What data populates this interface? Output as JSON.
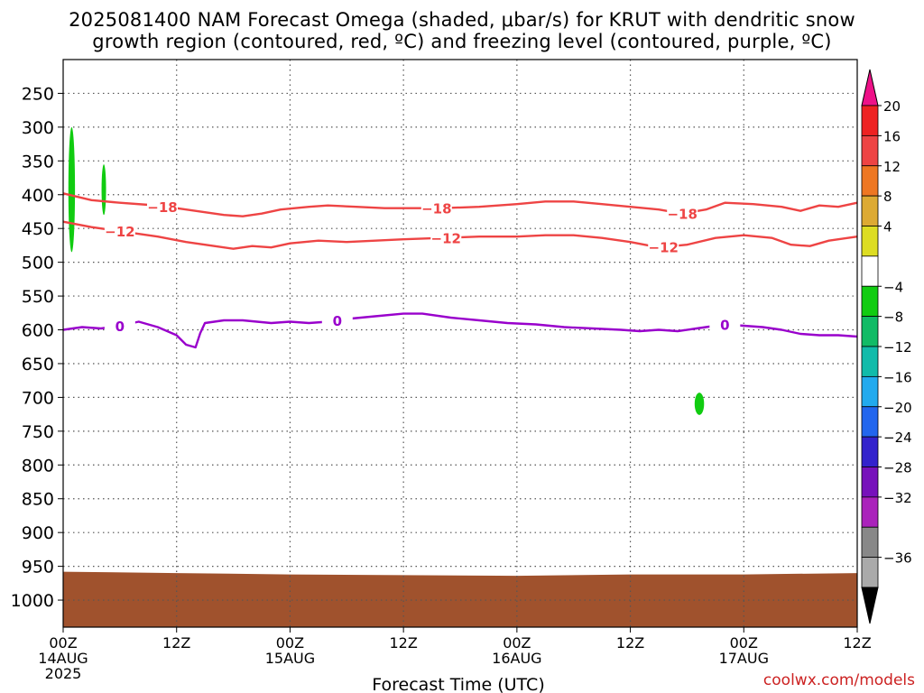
{
  "title_line1": "2025081400 NAM Forecast Omega (shaded, μbar/s) for KRUT with dendritic snow",
  "title_line2": "growth region (contoured, red, ºC) and freezing level (contoured, purple, ºC)",
  "credit": "coolwx.com/models",
  "chart_data": {
    "type": "time-height",
    "xlabel": "Forecast Time (UTC)",
    "x_ticks": [
      {
        "hour": 0,
        "label": "00Z",
        "sub": "14AUG",
        "sub2": "2025"
      },
      {
        "hour": 12,
        "label": "12Z",
        "sub": "",
        "sub2": ""
      },
      {
        "hour": 24,
        "label": "00Z",
        "sub": "15AUG",
        "sub2": ""
      },
      {
        "hour": 36,
        "label": "12Z",
        "sub": "",
        "sub2": ""
      },
      {
        "hour": 48,
        "label": "00Z",
        "sub": "16AUG",
        "sub2": ""
      },
      {
        "hour": 60,
        "label": "12Z",
        "sub": "",
        "sub2": ""
      },
      {
        "hour": 72,
        "label": "00Z",
        "sub": "17AUG",
        "sub2": ""
      },
      {
        "hour": 84,
        "label": "12Z",
        "sub": "",
        "sub2": ""
      }
    ],
    "xlim": [
      0,
      84
    ],
    "y_levels": [
      250,
      300,
      350,
      400,
      450,
      500,
      550,
      600,
      650,
      700,
      750,
      800,
      850,
      900,
      950,
      1000
    ],
    "ylim": [
      200,
      1040
    ],
    "grid": true,
    "contours": [
      {
        "name": "-18",
        "color": "#ee4444",
        "label_hours": [
          10.5,
          39.5,
          65.5
        ],
        "points": [
          [
            0,
            398
          ],
          [
            3,
            408
          ],
          [
            6,
            412
          ],
          [
            9,
            415
          ],
          [
            12,
            420
          ],
          [
            15,
            426
          ],
          [
            17,
            430
          ],
          [
            19,
            432
          ],
          [
            21,
            428
          ],
          [
            23,
            422
          ],
          [
            26,
            418
          ],
          [
            28,
            416
          ],
          [
            31,
            418
          ],
          [
            34,
            420
          ],
          [
            37,
            420
          ],
          [
            40,
            420
          ],
          [
            44,
            418
          ],
          [
            48,
            414
          ],
          [
            51,
            410
          ],
          [
            54,
            410
          ],
          [
            57,
            414
          ],
          [
            60,
            418
          ],
          [
            63,
            422
          ],
          [
            65.5,
            428
          ],
          [
            68,
            422
          ],
          [
            70,
            412
          ],
          [
            73,
            414
          ],
          [
            76,
            418
          ],
          [
            78,
            424
          ],
          [
            80,
            416
          ],
          [
            82,
            418
          ],
          [
            84,
            412
          ]
        ]
      },
      {
        "name": "-12",
        "color": "#ee4444",
        "label_hours": [
          6,
          40.5,
          63.5
        ],
        "points": [
          [
            0,
            440
          ],
          [
            3,
            448
          ],
          [
            6,
            454
          ],
          [
            10,
            462
          ],
          [
            13,
            470
          ],
          [
            16,
            476
          ],
          [
            18,
            480
          ],
          [
            20,
            476
          ],
          [
            22,
            478
          ],
          [
            24,
            472
          ],
          [
            27,
            468
          ],
          [
            30,
            470
          ],
          [
            33,
            468
          ],
          [
            36,
            466
          ],
          [
            40,
            464
          ],
          [
            44,
            462
          ],
          [
            48,
            462
          ],
          [
            51,
            460
          ],
          [
            54,
            460
          ],
          [
            57,
            464
          ],
          [
            60,
            470
          ],
          [
            63,
            478
          ],
          [
            66,
            474
          ],
          [
            69,
            464
          ],
          [
            72,
            460
          ],
          [
            75,
            464
          ],
          [
            77,
            474
          ],
          [
            79,
            476
          ],
          [
            81,
            468
          ],
          [
            84,
            462
          ]
        ]
      },
      {
        "name": "0",
        "color": "#9900cc",
        "label_hours": [
          6,
          29,
          70
        ],
        "points": [
          [
            0,
            600
          ],
          [
            2,
            596
          ],
          [
            4,
            598
          ],
          [
            6,
            594
          ],
          [
            8,
            588
          ],
          [
            10,
            596
          ],
          [
            12,
            608
          ],
          [
            13,
            622
          ],
          [
            14,
            626
          ],
          [
            14.5,
            605
          ],
          [
            15,
            590
          ],
          [
            17,
            586
          ],
          [
            19,
            586
          ],
          [
            22,
            590
          ],
          [
            24,
            588
          ],
          [
            26,
            590
          ],
          [
            28,
            588
          ],
          [
            30,
            584
          ],
          [
            33,
            580
          ],
          [
            36,
            576
          ],
          [
            38,
            576
          ],
          [
            41,
            582
          ],
          [
            44,
            586
          ],
          [
            47,
            590
          ],
          [
            50,
            592
          ],
          [
            53,
            596
          ],
          [
            56,
            598
          ],
          [
            59,
            600
          ],
          [
            61,
            602
          ],
          [
            63,
            600
          ],
          [
            65,
            602
          ],
          [
            67,
            598
          ],
          [
            70,
            592
          ],
          [
            72,
            594
          ],
          [
            74,
            596
          ],
          [
            76,
            600
          ],
          [
            78,
            606
          ],
          [
            80,
            608
          ],
          [
            82,
            608
          ],
          [
            84,
            610
          ]
        ]
      }
    ],
    "shaded_blobs": [
      {
        "value": -6,
        "color": "#11cc11",
        "hour": 0.9,
        "p_top": 300,
        "p_bottom": 485,
        "half_width_h": 0.35
      },
      {
        "value": -6,
        "color": "#11cc11",
        "hour": 4.3,
        "p_top": 355,
        "p_bottom": 430,
        "half_width_h": 0.2
      },
      {
        "value": -6,
        "color": "#11cc11",
        "hour": 67.3,
        "p_top": 693,
        "p_bottom": 726,
        "half_width_h": 0.5
      }
    ],
    "terrain": {
      "color": "#a0522d",
      "points": [
        [
          0,
          958
        ],
        [
          12,
          960
        ],
        [
          24,
          962
        ],
        [
          48,
          964
        ],
        [
          60,
          962
        ],
        [
          72,
          962
        ],
        [
          84,
          960
        ]
      ]
    },
    "colorbar": {
      "labels": [
        "20",
        "16",
        "12",
        "8",
        "4",
        "-4",
        "-8",
        "-12",
        "-16",
        "-20",
        "-24",
        "-28",
        "-32",
        "-36"
      ],
      "colors": [
        "#ee2222",
        "#ee4444",
        "#ee7722",
        "#ddaa33",
        "#dddd22",
        "#ffffff",
        "#11cc11",
        "#11bb66",
        "#11bbaa",
        "#22aaee",
        "#2266ee",
        "#3322cc",
        "#7711bb",
        "#aa22bb",
        "#888888",
        "#aaaaaa"
      ],
      "top_color": "#ee1188",
      "bottom_color": "#000000"
    }
  }
}
